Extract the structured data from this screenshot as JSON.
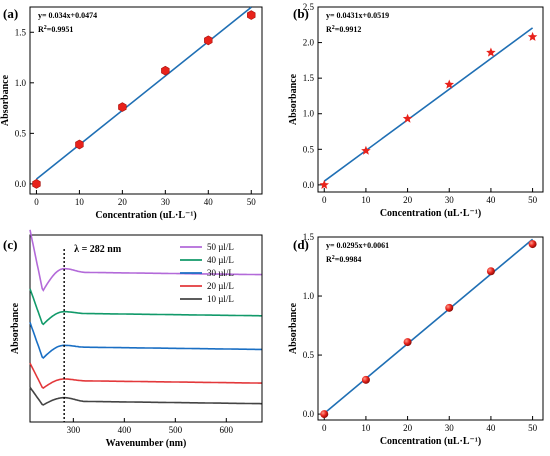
{
  "chart_data": [
    {
      "id": "a",
      "type": "scatter",
      "panel_label": "(a)",
      "xlabel": "Concentration (uL·L⁻¹)",
      "ylabel": "Absorbance",
      "xlim": [
        -1.5,
        52.5
      ],
      "ylim": [
        -0.1,
        1.75
      ],
      "xticks": [
        0,
        10,
        20,
        30,
        40,
        50
      ],
      "yticks": [
        0.0,
        0.5,
        1.0,
        1.5
      ],
      "ytick_labels": [
        "0.0",
        "0.5",
        "1.0",
        "1.5"
      ],
      "equation": "y= 0.034x+0.0474",
      "r2_prefix": "R",
      "r2_value": "=0.9951",
      "marker": "hexagon",
      "marker_color": "#e8221b",
      "line_color": "#1f6fb4",
      "fit": {
        "slope": 0.034,
        "intercept": 0.0474
      },
      "series": [
        {
          "x": [
            0,
            10,
            20,
            30,
            40,
            50
          ],
          "values": [
            0.0,
            0.39,
            0.76,
            1.12,
            1.42,
            1.67
          ]
        }
      ]
    },
    {
      "id": "b",
      "type": "scatter",
      "panel_label": "(b)",
      "xlabel": "Concentration (uL·L⁻¹)",
      "ylabel": "Absorbance",
      "xlim": [
        -1.5,
        52.5
      ],
      "ylim": [
        -0.1,
        2.5
      ],
      "xticks": [
        0,
        10,
        20,
        30,
        40,
        50
      ],
      "yticks": [
        0.0,
        0.5,
        1.0,
        1.5,
        2.0,
        2.5
      ],
      "ytick_labels": [
        "0.0",
        "0.5",
        "1.0",
        "1.5",
        "2.0",
        "2.5"
      ],
      "equation": "y= 0.0431x+0.0519",
      "r2_prefix": "R",
      "r2_value": "=0.9912",
      "marker": "star",
      "marker_color": "#e8221b",
      "line_color": "#1f6fb4",
      "fit": {
        "slope": 0.0431,
        "intercept": 0.0519
      },
      "series": [
        {
          "x": [
            0,
            10,
            20,
            30,
            40,
            50
          ],
          "values": [
            0.0,
            0.48,
            0.93,
            1.41,
            1.86,
            2.08
          ]
        }
      ]
    },
    {
      "id": "c",
      "type": "line",
      "panel_label": "(c)",
      "xlabel": "Wavenumber (nm)",
      "ylabel": "Absorbance",
      "xlim": [
        215,
        670
      ],
      "xticks": [
        300,
        400,
        500,
        600
      ],
      "annotation": "λ = 282 nm",
      "annotation_x": 282,
      "legend_position": "top-right",
      "series": [
        {
          "name": "50 µl/L",
          "color": "#b36ad9",
          "baseline": 0.8,
          "dip": 0.7,
          "peak": 0.82
        },
        {
          "name": "40 µl/L",
          "color": "#129a6a",
          "baseline": 0.58,
          "dip": 0.52,
          "peak": 0.59
        },
        {
          "name": "30 µl/L",
          "color": "#1a6fc4",
          "baseline": 0.4,
          "dip": 0.34,
          "peak": 0.41
        },
        {
          "name": "20 µl/L",
          "color": "#e3383b",
          "baseline": 0.22,
          "dip": 0.18,
          "peak": 0.23
        },
        {
          "name": "10 µl/L",
          "color": "#444444",
          "baseline": 0.11,
          "dip": 0.09,
          "peak": 0.13
        }
      ]
    },
    {
      "id": "d",
      "type": "scatter",
      "panel_label": "(d)",
      "xlabel": "Concentration (uL·L⁻¹)",
      "ylabel": "Absorbance",
      "xlim": [
        -1.5,
        52.5
      ],
      "ylim": [
        -0.05,
        1.5
      ],
      "xticks": [
        0,
        10,
        20,
        30,
        40,
        50
      ],
      "yticks": [
        0.0,
        0.5,
        1.0,
        1.5
      ],
      "ytick_labels": [
        "0.0",
        "0.5",
        "1.0",
        "1.5"
      ],
      "equation": "y= 0.0295x+0.0061",
      "r2_prefix": "R",
      "r2_value": "=0.9984",
      "marker": "sphere",
      "marker_color": "#e8221b",
      "line_color": "#1f6fb4",
      "fit": {
        "slope": 0.0295,
        "intercept": 0.0061
      },
      "series": [
        {
          "x": [
            0,
            10,
            20,
            30,
            40,
            50
          ],
          "values": [
            0.0,
            0.29,
            0.61,
            0.9,
            1.21,
            1.44
          ]
        }
      ]
    }
  ]
}
